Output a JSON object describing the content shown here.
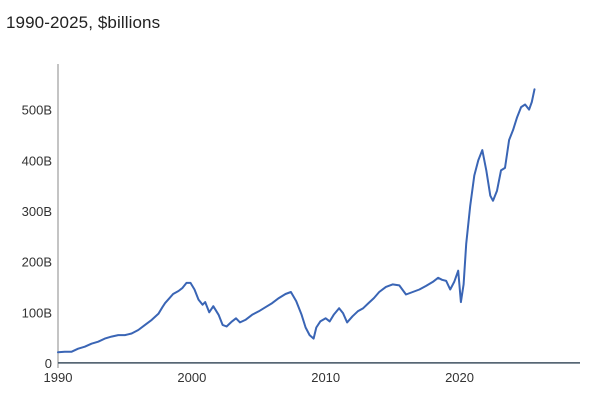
{
  "chart_data": {
    "type": "line",
    "title": "",
    "subtitle": "1990-2025, $billions",
    "xlabel": "",
    "ylabel": "",
    "xlim": [
      1990,
      2029
    ],
    "ylim": [
      -10,
      590
    ],
    "grid": false,
    "legend": "none",
    "x_ticks": [
      {
        "value": 1990,
        "label": "1990"
      },
      {
        "value": 2000,
        "label": "2000"
      },
      {
        "value": 2010,
        "label": "2010"
      },
      {
        "value": 2020,
        "label": "2020"
      }
    ],
    "y_ticks": [
      {
        "value": 0,
        "label": "0"
      },
      {
        "value": 100,
        "label": "100B"
      },
      {
        "value": 200,
        "label": "200B"
      },
      {
        "value": 300,
        "label": "300B"
      },
      {
        "value": 400,
        "label": "400B"
      },
      {
        "value": 500,
        "label": "500B"
      }
    ],
    "colors": {
      "line": "#3a65b5",
      "baseline": "#3f5060",
      "axis": "#8a8a8a"
    },
    "series": [
      {
        "x": [
          1990.0,
          1990.5,
          1991.0,
          1991.5,
          1992.0,
          1992.5,
          1993.0,
          1993.5,
          1994.0,
          1994.5,
          1995.0,
          1995.5,
          1996.0,
          1996.5,
          1997.0,
          1997.5,
          1997.8,
          1998.0,
          1998.3,
          1998.6,
          1999.0,
          1999.3,
          1999.6,
          1999.9,
          2000.2,
          2000.5,
          2000.8,
          2001.0,
          2001.3,
          2001.6,
          2002.0,
          2002.3,
          2002.6,
          2003.0,
          2003.3,
          2003.6,
          2004.0,
          2004.5,
          2005.0,
          2005.5,
          2006.0,
          2006.5,
          2007.0,
          2007.4,
          2007.8,
          2008.2,
          2008.5,
          2008.8,
          2009.1,
          2009.3,
          2009.6,
          2010.0,
          2010.3,
          2010.6,
          2011.0,
          2011.3,
          2011.6,
          2012.0,
          2012.4,
          2012.8,
          2013.2,
          2013.6,
          2014.0,
          2014.5,
          2015.0,
          2015.5,
          2016.0,
          2016.5,
          2017.0,
          2017.5,
          2018.0,
          2018.4,
          2018.7,
          2019.0,
          2019.3,
          2019.6,
          2019.9,
          2020.1,
          2020.3,
          2020.5,
          2020.8,
          2021.1,
          2021.4,
          2021.7,
          2022.0,
          2022.3,
          2022.5,
          2022.8,
          2023.1,
          2023.4,
          2023.7,
          2024.0,
          2024.3,
          2024.6,
          2024.9,
          2025.2,
          2025.4,
          2025.6
        ],
        "y": [
          21,
          22,
          22,
          28,
          32,
          38,
          42,
          48,
          52,
          55,
          55,
          58,
          65,
          75,
          85,
          97,
          110,
          118,
          127,
          136,
          142,
          148,
          158,
          158,
          145,
          125,
          115,
          120,
          100,
          112,
          95,
          75,
          72,
          82,
          88,
          80,
          85,
          95,
          102,
          110,
          118,
          128,
          136,
          140,
          122,
          95,
          70,
          55,
          48,
          70,
          82,
          88,
          82,
          95,
          108,
          98,
          80,
          92,
          102,
          108,
          118,
          128,
          140,
          150,
          155,
          153,
          135,
          140,
          145,
          152,
          160,
          168,
          164,
          162,
          145,
          160,
          182,
          120,
          155,
          235,
          310,
          370,
          400,
          420,
          380,
          330,
          320,
          340,
          380,
          385,
          440,
          460,
          485,
          505,
          510,
          500,
          515,
          540
        ]
      }
    ]
  }
}
